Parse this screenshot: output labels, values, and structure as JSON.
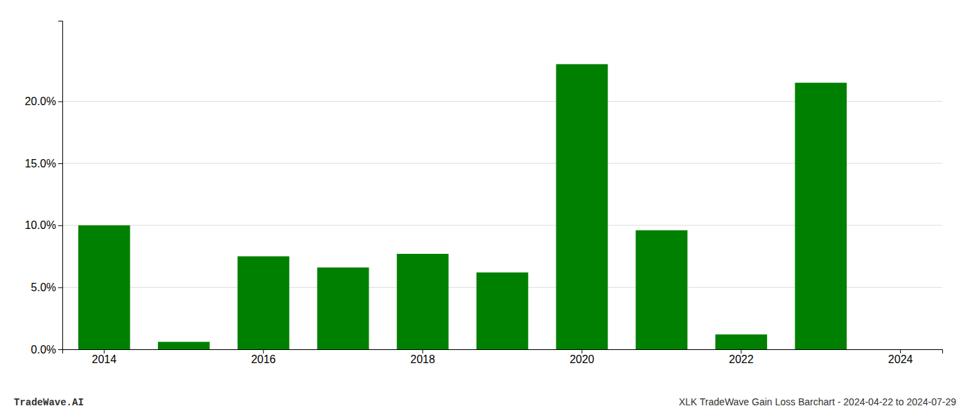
{
  "chart_data": {
    "type": "bar",
    "categories": [
      "2014",
      null,
      "2016",
      null,
      "2018",
      null,
      "2020",
      null,
      "2022",
      null,
      "2024"
    ],
    "values": [
      0.1,
      0.006,
      0.075,
      0.066,
      0.077,
      0.062,
      0.23,
      0.096,
      0.012,
      0.215,
      0.0
    ],
    "color": "#008000",
    "ylim": [
      0,
      0.265
    ],
    "yticks": [
      {
        "value": 0.0,
        "label": "0.0%"
      },
      {
        "value": 0.05,
        "label": "5.0%"
      },
      {
        "value": 0.1,
        "label": "10.0%"
      },
      {
        "value": 0.15,
        "label": "15.0%"
      },
      {
        "value": 0.2,
        "label": "20.0%"
      }
    ],
    "grid": true,
    "annotations": [
      "TradeWave.AI",
      "XLK TradeWave Gain Loss Barchart - 2024-04-22 to 2024-07-29"
    ]
  }
}
